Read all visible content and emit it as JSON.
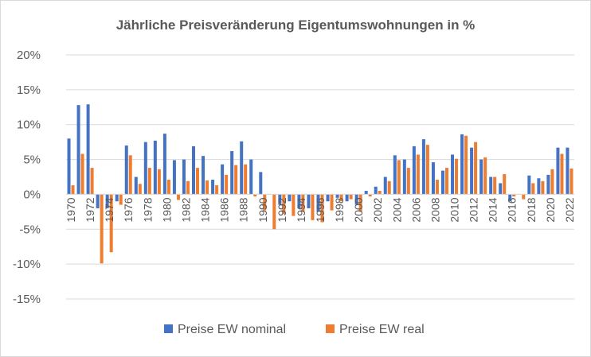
{
  "chart_data": {
    "type": "bar",
    "title": "Jährliche Preisveränderung Eigentumswohnungen in %",
    "xlabel": "",
    "ylabel": "",
    "ylim": [
      -15,
      20
    ],
    "yticks": [
      "20%",
      "15%",
      "10%",
      "5%",
      "0%",
      "-5%",
      "-10%",
      "-15%"
    ],
    "ytick_values": [
      20,
      15,
      10,
      5,
      0,
      -5,
      -10,
      -15
    ],
    "grid": true,
    "legend_position": "bottom",
    "categories": [
      "1970",
      "1971",
      "1972",
      "1973",
      "1974",
      "1975",
      "1976",
      "1977",
      "1978",
      "1979",
      "1980",
      "1981",
      "1982",
      "1983",
      "1984",
      "1985",
      "1986",
      "1987",
      "1988",
      "1989",
      "1990",
      "1991",
      "1992",
      "1993",
      "1994",
      "1995",
      "1996",
      "1997",
      "1998",
      "1999",
      "2000",
      "2001",
      "2002",
      "2003",
      "2004",
      "2005",
      "2006",
      "2007",
      "2008",
      "2009",
      "2010",
      "2011",
      "2012",
      "2013",
      "2014",
      "2015",
      "2016",
      "2017",
      "2018",
      "2019",
      "2020",
      "2021",
      "2022"
    ],
    "xtick_labels": [
      "1970",
      "1972",
      "1974",
      "1976",
      "1978",
      "1980",
      "1982",
      "1984",
      "1986",
      "1988",
      "1990",
      "1992",
      "1994",
      "1996",
      "1998",
      "2000",
      "2002",
      "2004",
      "2006",
      "2008",
      "2010",
      "2012",
      "2014",
      "2016",
      "2018",
      "2020",
      "2022"
    ],
    "series": [
      {
        "name": "Preise EW nominal",
        "color": "#4472c4",
        "values": [
          8.0,
          12.8,
          12.9,
          -2.0,
          -2.0,
          -1.0,
          7.0,
          2.5,
          7.5,
          7.7,
          8.7,
          4.9,
          5.0,
          6.9,
          5.5,
          2.1,
          4.3,
          6.2,
          7.6,
          5.0,
          3.2,
          0.0,
          -1.5,
          -1.0,
          -2.0,
          -2.0,
          -2.5,
          -1.0,
          -0.5,
          -1.0,
          -1.5,
          0.5,
          1.1,
          2.5,
          5.6,
          5.0,
          6.9,
          7.9,
          4.6,
          3.4,
          5.7,
          8.6,
          6.7,
          5.0,
          2.5,
          1.6,
          -1.0,
          0.0,
          2.7,
          2.3,
          2.8,
          6.7,
          6.7
        ]
      },
      {
        "name": "Preise EW real",
        "color": "#ed7d31",
        "values": [
          1.3,
          5.8,
          3.8,
          -9.9,
          -8.3,
          -1.5,
          5.6,
          1.5,
          3.8,
          3.6,
          2.1,
          -0.8,
          1.9,
          3.8,
          2.0,
          1.3,
          2.8,
          4.2,
          4.3,
          -0.3,
          -2.3,
          -5.0,
          -2.8,
          -3.1,
          -2.5,
          -3.7,
          -4.0,
          -2.3,
          -1.0,
          -0.7,
          -2.5,
          -0.3,
          0.5,
          1.9,
          4.9,
          3.8,
          5.7,
          7.1,
          2.1,
          3.8,
          5.1,
          8.4,
          7.5,
          5.3,
          2.5,
          2.9,
          -0.3,
          -0.7,
          1.6,
          1.9,
          3.6,
          5.8,
          3.7
        ]
      }
    ]
  }
}
